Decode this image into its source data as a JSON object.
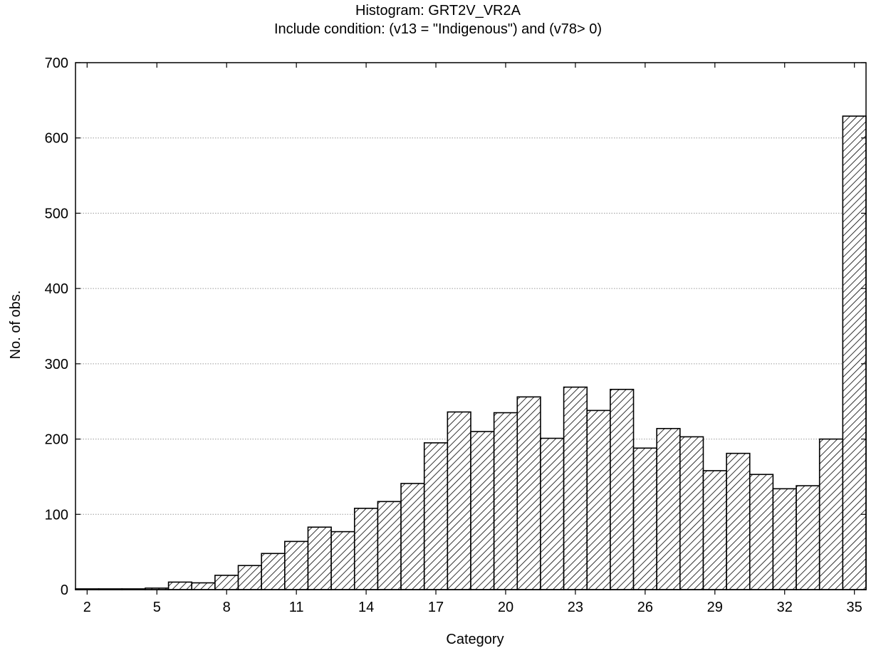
{
  "chart_data": {
    "type": "bar",
    "title": "Histogram: GRT2V_VR2A",
    "subtitle": "Include condition: (v13 = \"Indigenous\")  and (v78> 0)",
    "xlabel": "Category",
    "ylabel": "No. of obs.",
    "ylim": [
      0,
      700
    ],
    "yticks": [
      0,
      100,
      200,
      300,
      400,
      500,
      600,
      700
    ],
    "xticks": [
      "2",
      "5",
      "8",
      "11",
      "14",
      "17",
      "20",
      "23",
      "26",
      "29",
      "32",
      "35"
    ],
    "categories": [
      2,
      3,
      4,
      5,
      6,
      7,
      8,
      9,
      10,
      11,
      12,
      13,
      14,
      15,
      16,
      17,
      18,
      19,
      20,
      21,
      22,
      23,
      24,
      25,
      26,
      27,
      28,
      29,
      30,
      31,
      32,
      33,
      34,
      35
    ],
    "values": [
      1,
      1,
      1,
      2,
      10,
      9,
      19,
      32,
      48,
      64,
      83,
      77,
      108,
      117,
      141,
      195,
      236,
      210,
      235,
      256,
      201,
      269,
      238,
      266,
      188,
      214,
      203,
      158,
      181,
      153,
      134,
      138,
      200,
      629
    ],
    "grid": true,
    "fill_pattern": "diagonal-hatch",
    "colors": {
      "bar_fill": "#ffffff",
      "bar_stroke": "#000000",
      "grid": "#9a9a9a"
    }
  }
}
